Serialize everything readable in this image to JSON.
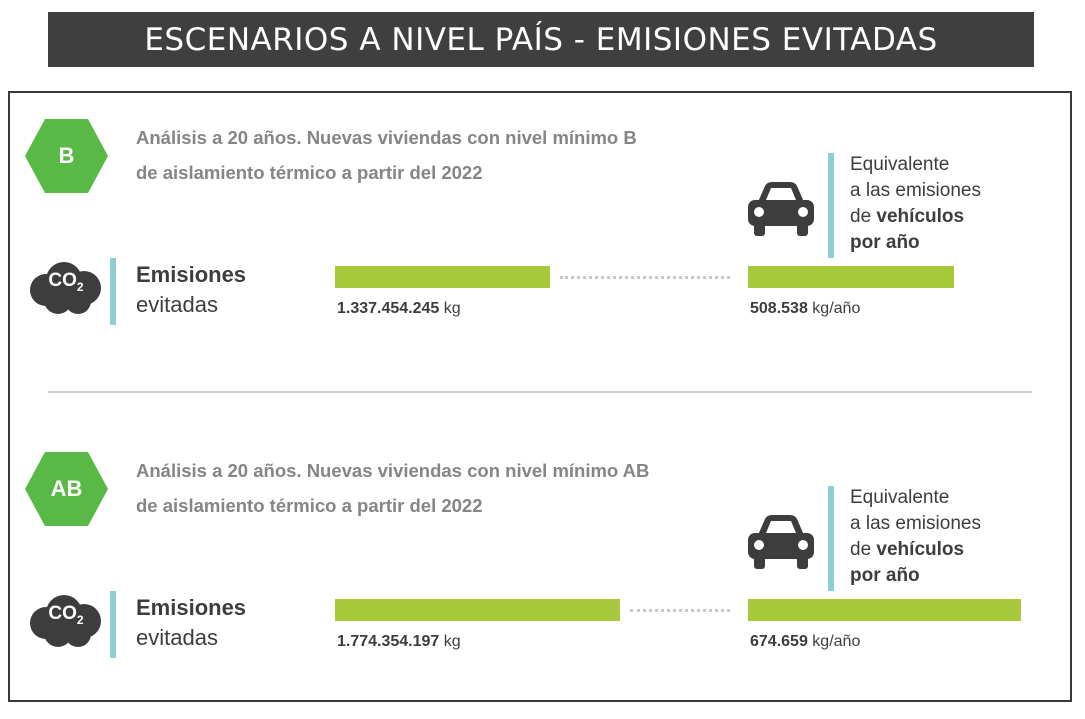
{
  "header": {
    "title": "ESCENARIOS A NIVEL PAÍS - EMISIONES EVITADAS"
  },
  "colors": {
    "accent_green": "#a8c83c",
    "badge_green": "#58b947",
    "divider_teal": "#8ccfd3",
    "banner_dark": "#3f3f3f"
  },
  "sections": [
    {
      "badge": "B",
      "heading_line1": "Análisis a 20 años. Nuevas viviendas con nivel mínimo B",
      "heading_line2": "de aislamiento térmico a partir del 2022",
      "co2_label": "CO",
      "co2_sub": "2",
      "emissions_title": "Emisiones",
      "emissions_sub": "evitadas",
      "avoided_value": "1.337.454.245",
      "avoided_unit": "kg",
      "vehicle_value": "508.538",
      "vehicle_unit": "kg/año",
      "equiv_line1": "Equivalente",
      "equiv_line2": "a las emisiones",
      "equiv_line3_prefix": "de",
      "equiv_line3_bold": "vehículos",
      "equiv_line4": "por año"
    },
    {
      "badge": "AB",
      "heading_line1": "Análisis a 20 años. Nuevas viviendas con nivel mínimo AB",
      "heading_line2": "de aislamiento térmico a partir del 2022",
      "co2_label": "CO",
      "co2_sub": "2",
      "emissions_title": "Emisiones",
      "emissions_sub": "evitadas",
      "avoided_value": "1.774.354.197",
      "avoided_unit": "kg",
      "vehicle_value": "674.659",
      "vehicle_unit": "kg/año",
      "equiv_line1": "Equivalente",
      "equiv_line2": "a las emisiones",
      "equiv_line3_prefix": "de",
      "equiv_line3_bold": "vehículos",
      "equiv_line4": "por año"
    }
  ],
  "chart_data": {
    "type": "bar",
    "categories": [
      "B",
      "AB"
    ],
    "series": [
      {
        "values": [
          1337454245,
          1774354197
        ]
      },
      {
        "values": [
          508538,
          674659
        ]
      }
    ]
  }
}
